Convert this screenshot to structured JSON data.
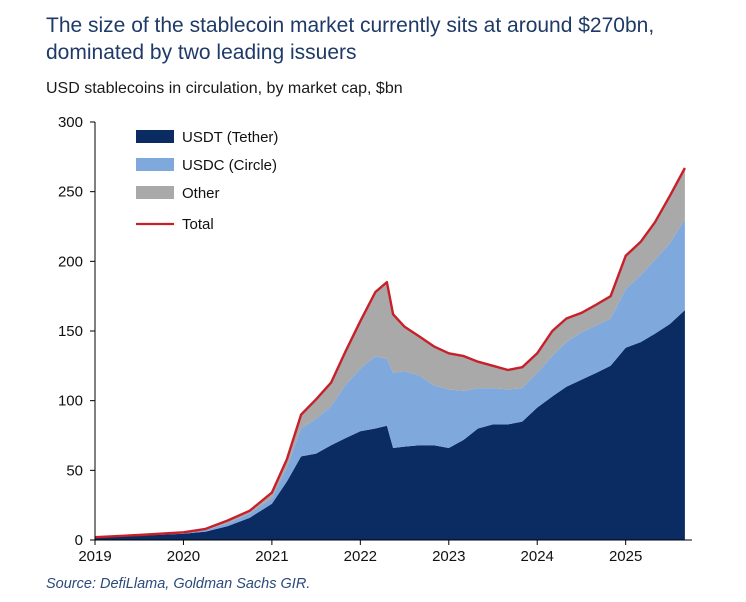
{
  "title": "The size of the stablecoin market currently sits at around $270bn, dominated by two leading issuers",
  "subtitle": "USD stablecoins in circulation, by market cap, $bn",
  "source": "Source: DefiLlama, Goldman Sachs GIR.",
  "colors": {
    "usdt": "#0b2b63",
    "usdc": "#7fa8dc",
    "other": "#a9a9a9",
    "total": "#c8202a"
  },
  "chart_data": {
    "type": "area",
    "stacked": true,
    "title": "USD stablecoins in circulation, by market cap, $bn",
    "xlabel": "",
    "ylabel": "",
    "xlim": [
      2019.0,
      2025.75
    ],
    "ylim": [
      0,
      300
    ],
    "yticks": [
      "0",
      "50",
      "100",
      "150",
      "200",
      "250",
      "300"
    ],
    "xticks": [
      "2019",
      "2020",
      "2021",
      "2022",
      "2023",
      "2024",
      "2025"
    ],
    "legend_position": "top-left",
    "x": [
      2019.0,
      2019.5,
      2020.0,
      2020.25,
      2020.5,
      2020.75,
      2021.0,
      2021.17,
      2021.33,
      2021.5,
      2021.67,
      2021.83,
      2022.0,
      2022.17,
      2022.3,
      2022.37,
      2022.5,
      2022.67,
      2022.83,
      2023.0,
      2023.17,
      2023.33,
      2023.5,
      2023.67,
      2023.83,
      2024.0,
      2024.17,
      2024.33,
      2024.5,
      2024.67,
      2024.83,
      2025.0,
      2025.17,
      2025.33,
      2025.5,
      2025.67
    ],
    "series": [
      {
        "name": "USDT (Tether)",
        "values": [
          1.5,
          3,
          4.5,
          6,
          10,
          16,
          26,
          42,
          60,
          62,
          68,
          73,
          78,
          80,
          82,
          66,
          67,
          68,
          68,
          66,
          72,
          80,
          83,
          83,
          85,
          95,
          103,
          110,
          115,
          120,
          125,
          138,
          142,
          148,
          155,
          165
        ]
      },
      {
        "name": "USDC (Circle)",
        "values": [
          0.3,
          0.4,
          0.6,
          1,
          2,
          3,
          4,
          10,
          20,
          25,
          28,
          38,
          45,
          52,
          48,
          54,
          54,
          50,
          43,
          42,
          35,
          29,
          26,
          25,
          24,
          25,
          29,
          32,
          34,
          34,
          34,
          42,
          48,
          53,
          58,
          65
        ]
      },
      {
        "name": "Other",
        "values": [
          0.2,
          0.2,
          0.4,
          1,
          2,
          2,
          4,
          6,
          10,
          14,
          17,
          24,
          34,
          46,
          55,
          42,
          32,
          28,
          28,
          26,
          25,
          19,
          16,
          14,
          15,
          14,
          18,
          17,
          14,
          15,
          16,
          24,
          24,
          27,
          34,
          37
        ]
      }
    ],
    "total": {
      "name": "Total",
      "values": [
        2,
        3.6,
        5.5,
        8,
        14,
        21,
        34,
        58,
        90,
        101,
        113,
        135,
        157,
        178,
        185,
        162,
        153,
        146,
        139,
        134,
        132,
        128,
        125,
        122,
        124,
        134,
        150,
        159,
        163,
        169,
        175,
        204,
        214,
        228,
        247,
        267
      ]
    }
  }
}
